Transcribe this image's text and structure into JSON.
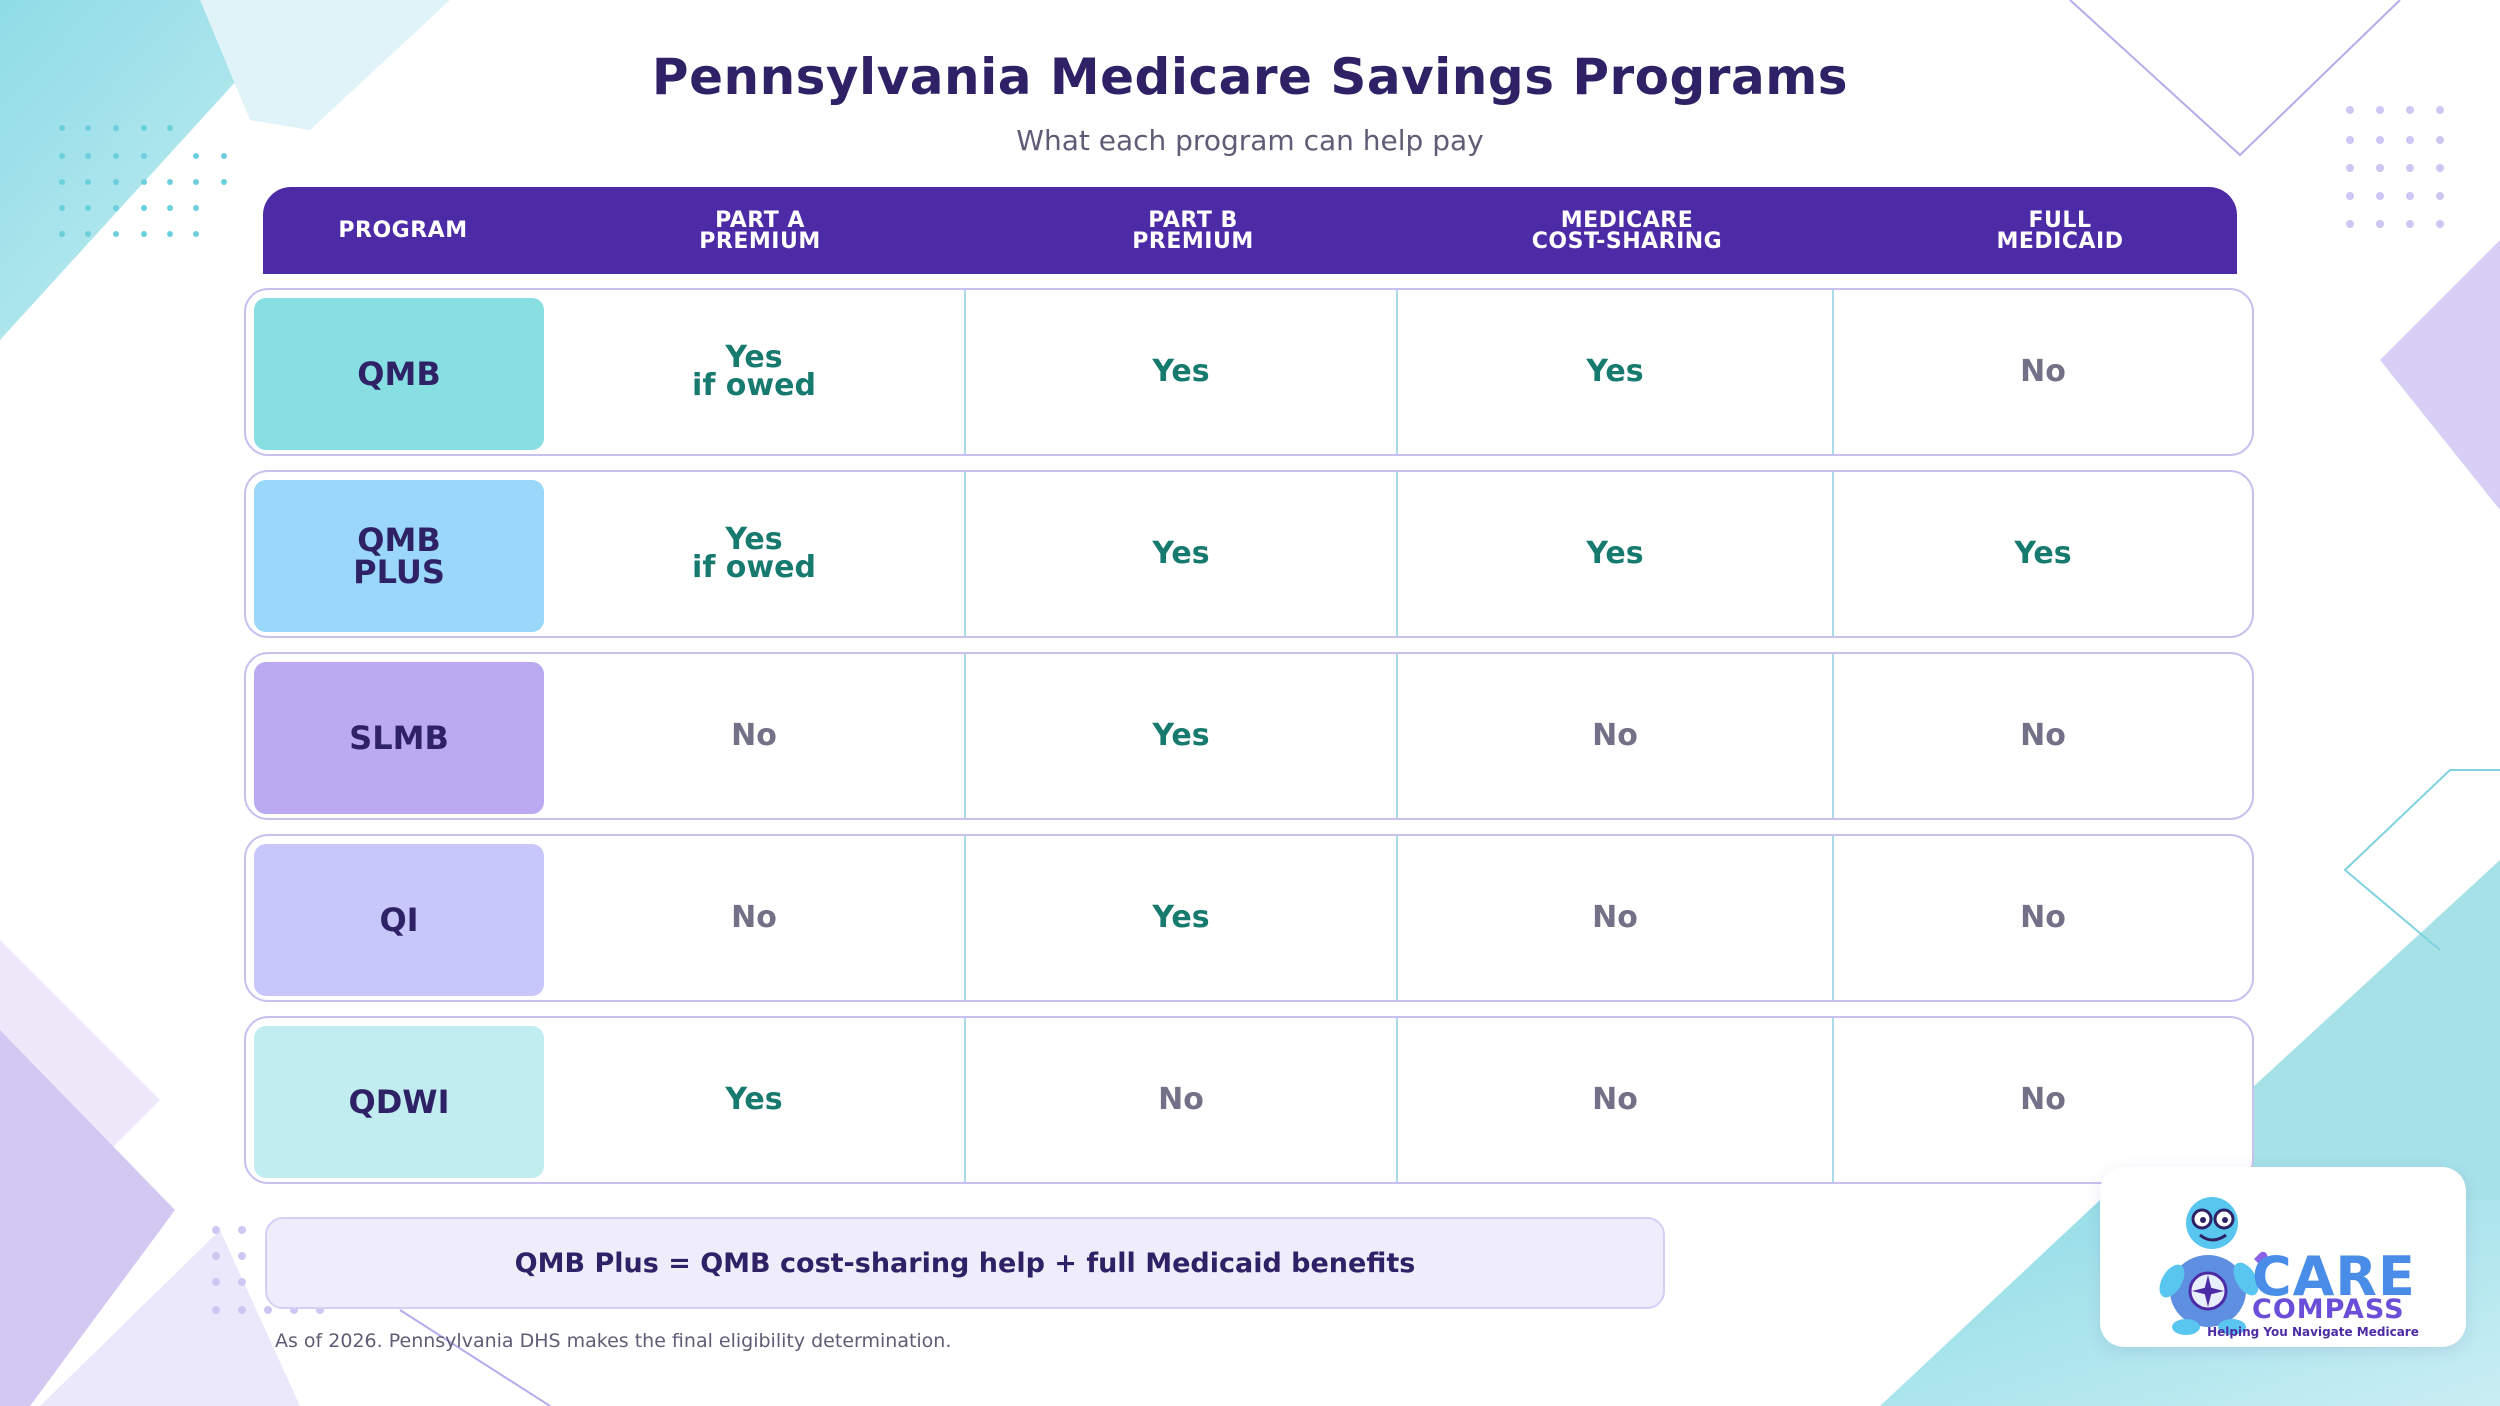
{
  "header": {
    "title": "Pennsylvania Medicare Savings Programs",
    "subtitle": "What each program can help pay"
  },
  "table": {
    "columns": [
      "PROGRAM",
      "PART A\nPREMIUM",
      "PART B\nPREMIUM",
      "MEDICARE\nCOST-SHARING",
      "FULL\nMEDICAID"
    ],
    "rows": [
      {
        "program": "QMB",
        "part_a": "Yes\nif owed",
        "part_b": "Yes",
        "cost_sharing": "Yes",
        "full_medicaid": "No",
        "color": "#87dfe2"
      },
      {
        "program": "QMB\nPLUS",
        "part_a": "Yes\nif owed",
        "part_b": "Yes",
        "cost_sharing": "Yes",
        "full_medicaid": "Yes",
        "color": "#9ad7fb"
      },
      {
        "program": "SLMB",
        "part_a": "No",
        "part_b": "Yes",
        "cost_sharing": "No",
        "full_medicaid": "No",
        "color": "#bbaaf1"
      },
      {
        "program": "QI",
        "part_a": "No",
        "part_b": "Yes",
        "cost_sharing": "No",
        "full_medicaid": "No",
        "color": "#c8c7fb"
      },
      {
        "program": "QDWI",
        "part_a": "Yes",
        "part_b": "No",
        "cost_sharing": "No",
        "full_medicaid": "No",
        "color": "#c1edf0"
      }
    ]
  },
  "note": "QMB Plus = QMB cost-sharing help + full Medicaid benefits",
  "footnote": "As of 2026. Pennsylvania DHS makes the final eligibility determination.",
  "logo": {
    "name_line1": "CARE",
    "name_line2": "COMPASS",
    "tagline": "Helping You Navigate Medicare",
    "icon": "turtle-mascot-icon"
  },
  "colors": {
    "header_bg": "#4d2ba6",
    "title": "#2e2166",
    "yes": "#167a6e",
    "no": "#737187",
    "cell_divider": "#a9dce8",
    "row_border": "#c8c0ee"
  }
}
